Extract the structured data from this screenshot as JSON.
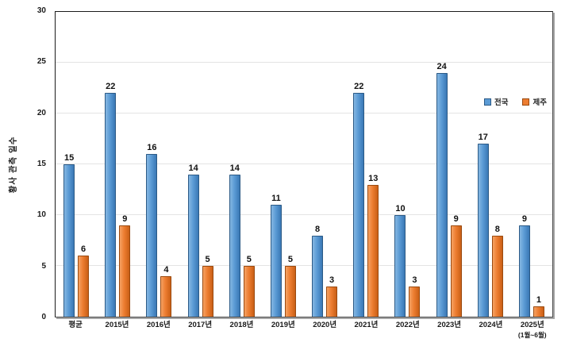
{
  "chart_data": {
    "type": "bar",
    "title": "",
    "ylabel": "황사 관측 일수",
    "xlabel": "",
    "categories": [
      "평균",
      "2015년",
      "2016년",
      "2017년",
      "2018년",
      "2019년",
      "2020년",
      "2021년",
      "2022년",
      "2023년",
      "2024년",
      "2025년"
    ],
    "category_subs": [
      "",
      "",
      "",
      "",
      "",
      "",
      "",
      "",
      "",
      "",
      "",
      "(1월~6월)"
    ],
    "series": [
      {
        "name": "전국",
        "color": "#5b9bd5",
        "values": [
          15,
          22,
          16,
          14,
          14,
          11,
          8,
          22,
          10,
          24,
          17,
          9
        ]
      },
      {
        "name": "제주",
        "color": "#ed7d31",
        "values": [
          6,
          9,
          4,
          5,
          5,
          5,
          3,
          13,
          3,
          9,
          8,
          1
        ]
      }
    ],
    "ylim": [
      0,
      30
    ],
    "y_ticks": [
      0,
      5,
      10,
      15,
      20,
      25,
      30
    ],
    "grid": "horizontal",
    "legend_position": "upper-right-inside",
    "data_labels": true,
    "colors": {
      "national": "#5b9bd5",
      "jeju": "#ed7d31",
      "gridline": "#e4e4e4",
      "axis": "#4d4d4d"
    }
  }
}
